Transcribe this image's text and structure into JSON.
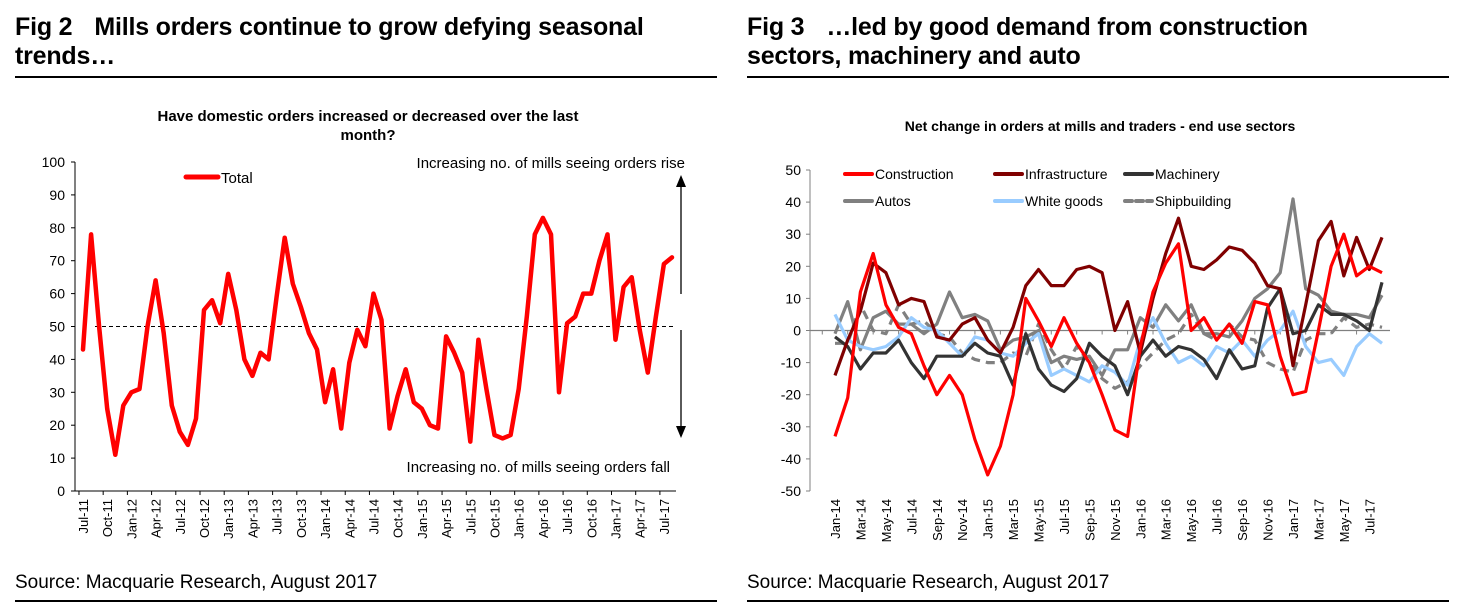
{
  "figures": [
    {
      "fig_number": "Fig 2",
      "title_line1": "Mills orders continue to grow defying seasonal",
      "title_line2": "trends…",
      "source": "Source: Macquarie Research, August 2017"
    },
    {
      "fig_number": "Fig 3",
      "title_line1": "…led by good demand from construction",
      "title_line2": "sectors, machinery and auto",
      "source": "Source: Macquarie Research, August 2017"
    }
  ],
  "chart_data": [
    {
      "type": "line",
      "title_line1": "Have domestic orders increased or decreased over the last",
      "title_line2": "month?",
      "xlabel": "",
      "ylabel": "",
      "ylim": [
        0,
        100
      ],
      "yticks": [
        0,
        10,
        20,
        30,
        40,
        50,
        60,
        70,
        80,
        90,
        100
      ],
      "grid": false,
      "legend_position": "top-left",
      "reference_line": {
        "value": 50,
        "style": "dashed"
      },
      "annotations": {
        "top": "Increasing no. of mills seeing orders rise",
        "bottom": "Increasing no. of mills seeing orders fall"
      },
      "x_tick_labels": [
        "Jul-11",
        "Oct-11",
        "Jan-12",
        "Apr-12",
        "Jul-12",
        "Oct-12",
        "Jan-13",
        "Apr-13",
        "Jul-13",
        "Oct-13",
        "Jan-14",
        "Apr-14",
        "Jul-14",
        "Oct-14",
        "Jan-15",
        "Apr-15",
        "Jul-15",
        "Oct-15",
        "Jan-16",
        "Apr-16",
        "Jul-16",
        "Oct-16",
        "Jan-17",
        "Apr-17",
        "Jul-17"
      ],
      "x": [
        "Jul-11",
        "Aug-11",
        "Sep-11",
        "Oct-11",
        "Nov-11",
        "Dec-11",
        "Jan-12",
        "Feb-12",
        "Mar-12",
        "Apr-12",
        "May-12",
        "Jun-12",
        "Jul-12",
        "Aug-12",
        "Sep-12",
        "Oct-12",
        "Nov-12",
        "Dec-12",
        "Jan-13",
        "Feb-13",
        "Mar-13",
        "Apr-13",
        "May-13",
        "Jun-13",
        "Jul-13",
        "Aug-13",
        "Sep-13",
        "Oct-13",
        "Nov-13",
        "Dec-13",
        "Jan-14",
        "Feb-14",
        "Mar-14",
        "Apr-14",
        "May-14",
        "Jun-14",
        "Jul-14",
        "Aug-14",
        "Sep-14",
        "Oct-14",
        "Nov-14",
        "Dec-14",
        "Jan-15",
        "Feb-15",
        "Mar-15",
        "Apr-15",
        "May-15",
        "Jun-15",
        "Jul-15",
        "Aug-15",
        "Sep-15",
        "Oct-15",
        "Nov-15",
        "Dec-15",
        "Jan-16",
        "Feb-16",
        "Mar-16",
        "Apr-16",
        "May-16",
        "Jun-16",
        "Jul-16",
        "Aug-16",
        "Sep-16",
        "Oct-16",
        "Nov-16",
        "Dec-16",
        "Jan-17",
        "Feb-17",
        "Mar-17",
        "Apr-17",
        "May-17",
        "Jun-17",
        "Jul-17",
        "Aug-17"
      ],
      "series": [
        {
          "name": "Total",
          "color": "#ff0000",
          "values": [
            43,
            78,
            50,
            25,
            11,
            26,
            30,
            31,
            50,
            64,
            48,
            26,
            18,
            14,
            22,
            55,
            58,
            51,
            66,
            55,
            40,
            35,
            42,
            40,
            59,
            77,
            63,
            56,
            48,
            43,
            27,
            37,
            19,
            39,
            49,
            44,
            60,
            52,
            19,
            29,
            37,
            27,
            25,
            20,
            19,
            47,
            42,
            36,
            15,
            46,
            31,
            17,
            16,
            17,
            31,
            53,
            78,
            83,
            78,
            30,
            51,
            53,
            60,
            60,
            70,
            78,
            46,
            62,
            65,
            49,
            36,
            53,
            69,
            71
          ]
        }
      ]
    },
    {
      "type": "line",
      "title": "Net change in orders at mills and traders - end use sectors",
      "xlabel": "",
      "ylabel": "",
      "ylim": [
        -50,
        50
      ],
      "yticks": [
        -50,
        -40,
        -30,
        -20,
        -10,
        0,
        10,
        20,
        30,
        40,
        50
      ],
      "grid": false,
      "legend_position": "top",
      "x_tick_labels": [
        "Jan-14",
        "Mar-14",
        "May-14",
        "Jul-14",
        "Sep-14",
        "Nov-14",
        "Jan-15",
        "Mar-15",
        "May-15",
        "Jul-15",
        "Sep-15",
        "Nov-15",
        "Jan-16",
        "Mar-16",
        "May-16",
        "Jul-16",
        "Sep-16",
        "Nov-16",
        "Jan-17",
        "Mar-17",
        "May-17",
        "Jul-17"
      ],
      "x": [
        "Jan-14",
        "Feb-14",
        "Mar-14",
        "Apr-14",
        "May-14",
        "Jun-14",
        "Jul-14",
        "Aug-14",
        "Sep-14",
        "Oct-14",
        "Nov-14",
        "Dec-14",
        "Jan-15",
        "Feb-15",
        "Mar-15",
        "Apr-15",
        "May-15",
        "Jun-15",
        "Jul-15",
        "Aug-15",
        "Sep-15",
        "Oct-15",
        "Nov-15",
        "Dec-15",
        "Jan-16",
        "Feb-16",
        "Mar-16",
        "Apr-16",
        "May-16",
        "Jun-16",
        "Jul-16",
        "Aug-16",
        "Sep-16",
        "Oct-16",
        "Nov-16",
        "Dec-16",
        "Jan-17",
        "Feb-17",
        "Mar-17",
        "Apr-17",
        "May-17",
        "Jun-17",
        "Jul-17",
        "Aug-17"
      ],
      "series": [
        {
          "name": "Construction",
          "color": "#ff0000",
          "dashed": false,
          "values": [
            -33,
            -21,
            12,
            24,
            8,
            1,
            -1,
            -11,
            -20,
            -14,
            -20,
            -34,
            -45,
            -36,
            -20,
            10,
            3,
            -5,
            4,
            -4,
            -10,
            -20,
            -31,
            -33,
            -5,
            12,
            21,
            27,
            0,
            4,
            -3,
            2,
            -4,
            9,
            8,
            -8,
            -20,
            -19,
            0,
            20,
            30,
            17,
            20,
            18
          ]
        },
        {
          "name": "Infrastructure",
          "color": "#800000",
          "dashed": false,
          "values": [
            -14,
            -3,
            6,
            21,
            18,
            8,
            10,
            9,
            -2,
            -3,
            2,
            4,
            -3,
            -7,
            1,
            14,
            19,
            14,
            14,
            19,
            20,
            18,
            0,
            9,
            -7,
            10,
            24,
            35,
            20,
            19,
            22,
            26,
            25,
            21,
            14,
            13,
            -11,
            8,
            28,
            34,
            17,
            29,
            19,
            29
          ]
        },
        {
          "name": "Machinery",
          "color": "#333333",
          "dashed": false,
          "values": [
            -2,
            -5,
            -12,
            -7,
            -7,
            -3,
            -10,
            -15,
            -8,
            -8,
            -8,
            -4,
            -7,
            -8,
            -17,
            -1,
            -12,
            -17,
            -19,
            -15,
            -4,
            -8,
            -11,
            -20,
            -8,
            -3,
            -8,
            -5,
            -6,
            -9,
            -15,
            -6,
            -12,
            -11,
            7,
            13,
            -1,
            0,
            8,
            5,
            5,
            3,
            0,
            15
          ]
        },
        {
          "name": "Autos",
          "color": "#808080",
          "dashed": false,
          "values": [
            -1,
            9,
            -6,
            4,
            6,
            2,
            2,
            -1,
            2,
            12,
            4,
            5,
            3,
            -6,
            -3,
            -2,
            0,
            -10,
            -8,
            -9,
            -8,
            -14,
            -6,
            -6,
            4,
            1,
            8,
            3,
            8,
            -1,
            -1,
            -2,
            3,
            10,
            13,
            18,
            41,
            13,
            11,
            6,
            5,
            5,
            4,
            11
          ]
        },
        {
          "name": "White goods",
          "color": "#99ccff",
          "dashed": false,
          "values": [
            5,
            -3,
            -5,
            -6,
            -5,
            -2,
            4,
            1,
            0,
            -4,
            -8,
            -2,
            -3,
            -7,
            -8,
            -4,
            -1,
            -14,
            -12,
            -14,
            -16,
            -11,
            -13,
            -17,
            -3,
            4,
            -4,
            -10,
            -8,
            -11,
            -5,
            -7,
            -3,
            -8,
            -3,
            0,
            6,
            -5,
            -10,
            -9,
            -14,
            -5,
            -1,
            -4
          ]
        },
        {
          "name": "Shipbuilding",
          "color": "#808080",
          "dashed": true,
          "values": [
            -4,
            -4,
            8,
            0,
            -1,
            8,
            2,
            3,
            -1,
            -2,
            -7,
            -9,
            -10,
            -10,
            -7,
            -8,
            2,
            -6,
            -12,
            -5,
            -10,
            -15,
            -18,
            -16,
            -11,
            -7,
            -3,
            -1,
            5,
            -1,
            -3,
            2,
            -2,
            -3,
            -10,
            -12,
            -13,
            -3,
            -1,
            -1,
            4,
            1,
            2,
            1
          ]
        }
      ]
    }
  ]
}
